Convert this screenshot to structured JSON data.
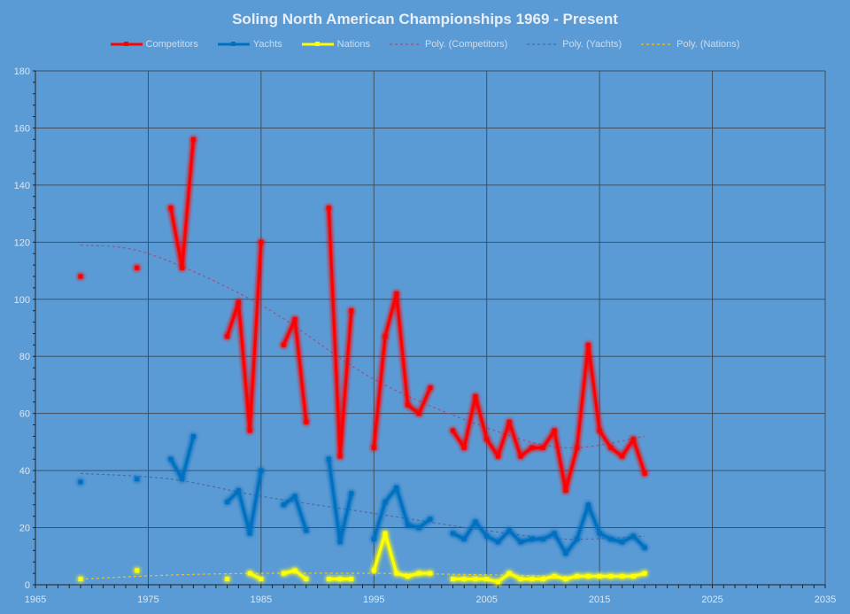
{
  "chart_data": {
    "type": "line",
    "title": "Soling North American Championships 1969 - Present",
    "xlim": [
      1965,
      2035
    ],
    "xticks": [
      1965,
      1975,
      1985,
      1995,
      2005,
      2015,
      2025,
      2035
    ],
    "ylim": [
      0,
      180
    ],
    "yticks": [
      0,
      20,
      40,
      60,
      80,
      100,
      120,
      140,
      160,
      180
    ],
    "grid": true,
    "legend": "top",
    "series": [
      {
        "name": "Competitors",
        "color": "#ff0000",
        "points": [
          [
            1969,
            108
          ],
          [
            1974,
            111
          ],
          [
            1977,
            132
          ],
          [
            1978,
            111
          ],
          [
            1979,
            156
          ],
          [
            1982,
            87
          ],
          [
            1983,
            99
          ],
          [
            1984,
            54
          ],
          [
            1985,
            120
          ],
          [
            1987,
            84
          ],
          [
            1988,
            93
          ],
          [
            1989,
            57
          ],
          [
            1991,
            132
          ],
          [
            1992,
            45
          ],
          [
            1993,
            96
          ],
          [
            1995,
            48
          ],
          [
            1996,
            87
          ],
          [
            1997,
            102
          ],
          [
            1998,
            63
          ],
          [
            1999,
            60
          ],
          [
            2000,
            69
          ],
          [
            2002,
            54
          ],
          [
            2003,
            48
          ],
          [
            2004,
            66
          ],
          [
            2005,
            51
          ],
          [
            2006,
            45
          ],
          [
            2007,
            57
          ],
          [
            2008,
            45
          ],
          [
            2009,
            48
          ],
          [
            2010,
            48
          ],
          [
            2011,
            54
          ],
          [
            2012,
            33
          ],
          [
            2013,
            48
          ],
          [
            2014,
            84
          ],
          [
            2015,
            54
          ],
          [
            2016,
            48
          ],
          [
            2017,
            45
          ],
          [
            2018,
            51
          ],
          [
            2019,
            39
          ]
        ]
      },
      {
        "name": "Yachts",
        "color": "#0070c0",
        "points": [
          [
            1969,
            36
          ],
          [
            1974,
            37
          ],
          [
            1977,
            44
          ],
          [
            1978,
            37
          ],
          [
            1979,
            52
          ],
          [
            1982,
            29
          ],
          [
            1983,
            33
          ],
          [
            1984,
            18
          ],
          [
            1985,
            40
          ],
          [
            1987,
            28
          ],
          [
            1988,
            31
          ],
          [
            1989,
            19
          ],
          [
            1991,
            44
          ],
          [
            1992,
            15
          ],
          [
            1993,
            32
          ],
          [
            1995,
            16
          ],
          [
            1996,
            29
          ],
          [
            1997,
            34
          ],
          [
            1998,
            21
          ],
          [
            1999,
            20
          ],
          [
            2000,
            23
          ],
          [
            2002,
            18
          ],
          [
            2003,
            16
          ],
          [
            2004,
            22
          ],
          [
            2005,
            17
          ],
          [
            2006,
            15
          ],
          [
            2007,
            19
          ],
          [
            2008,
            15
          ],
          [
            2009,
            16
          ],
          [
            2010,
            16
          ],
          [
            2011,
            18
          ],
          [
            2012,
            11
          ],
          [
            2013,
            16
          ],
          [
            2014,
            28
          ],
          [
            2015,
            18
          ],
          [
            2016,
            16
          ],
          [
            2017,
            15
          ],
          [
            2018,
            17
          ],
          [
            2019,
            13
          ]
        ]
      },
      {
        "name": "Nations",
        "color": "#ffff00",
        "points": [
          [
            1969,
            2
          ],
          [
            1974,
            5
          ],
          [
            1982,
            2
          ],
          [
            1984,
            4
          ],
          [
            1985,
            2
          ],
          [
            1987,
            4
          ],
          [
            1988,
            5
          ],
          [
            1989,
            2
          ],
          [
            1991,
            2
          ],
          [
            1992,
            2
          ],
          [
            1993,
            2
          ],
          [
            1995,
            5
          ],
          [
            1996,
            18
          ],
          [
            1997,
            4
          ],
          [
            1998,
            3
          ],
          [
            1999,
            4
          ],
          [
            2000,
            4
          ],
          [
            2002,
            2
          ],
          [
            2003,
            2
          ],
          [
            2004,
            2
          ],
          [
            2005,
            2
          ],
          [
            2006,
            1
          ],
          [
            2007,
            4
          ],
          [
            2008,
            2
          ],
          [
            2009,
            2
          ],
          [
            2010,
            2
          ],
          [
            2011,
            3
          ],
          [
            2012,
            2
          ],
          [
            2013,
            3
          ],
          [
            2014,
            3
          ],
          [
            2015,
            3
          ],
          [
            2016,
            3
          ],
          [
            2017,
            3
          ],
          [
            2018,
            3
          ],
          [
            2019,
            4
          ]
        ]
      }
    ],
    "trendlines": [
      {
        "name": "Poly. (Competitors)",
        "color": "#a05080",
        "of": "Competitors",
        "points": [
          [
            1969,
            119
          ],
          [
            1975,
            116
          ],
          [
            1985,
            98
          ],
          [
            1995,
            72
          ],
          [
            2005,
            55
          ],
          [
            2012,
            48
          ],
          [
            2019,
            52
          ]
        ]
      },
      {
        "name": "Poly. (Yachts)",
        "color": "#4a6aa0",
        "of": "Yachts",
        "points": [
          [
            1969,
            39
          ],
          [
            1977,
            37
          ],
          [
            1985,
            31
          ],
          [
            1995,
            25
          ],
          [
            2005,
            19
          ],
          [
            2012,
            16
          ],
          [
            2019,
            17
          ]
        ]
      },
      {
        "name": "Poly. (Nations)",
        "color": "#ffc000",
        "of": "Nations",
        "points": [
          [
            1969,
            2
          ],
          [
            1977,
            3.4
          ],
          [
            1985,
            4
          ],
          [
            1995,
            4
          ],
          [
            2005,
            3.5
          ],
          [
            2012,
            3
          ],
          [
            2019,
            3.3
          ]
        ]
      }
    ]
  }
}
